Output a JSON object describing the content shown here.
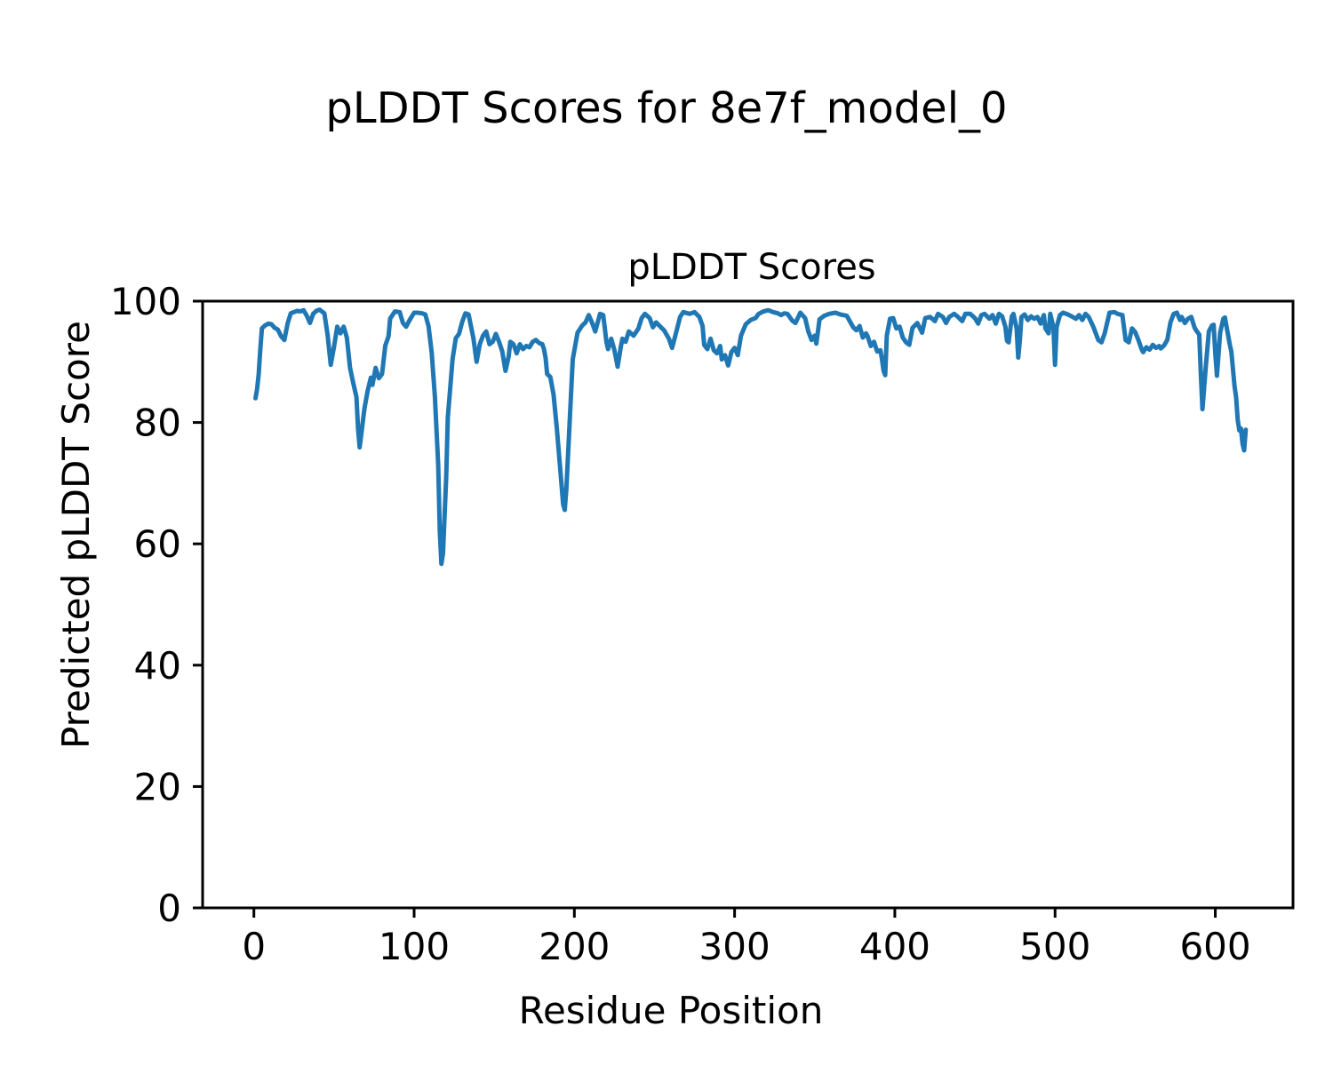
{
  "figure": {
    "suptitle": "pLDDT Scores for 8e7f_model_0",
    "background_color": "#ffffff",
    "text_color": "#000000"
  },
  "chart_data": {
    "type": "line",
    "title": "pLDDT Scores",
    "xlabel": "Residue Position",
    "ylabel": "Predicted pLDDT Score",
    "xlim": [
      -32,
      648.5
    ],
    "ylim": [
      0,
      100
    ],
    "xticks": [
      0,
      100,
      200,
      300,
      400,
      500,
      600
    ],
    "yticks": [
      0,
      20,
      40,
      60,
      80,
      100
    ],
    "grid": false,
    "legend_position": "none",
    "line_color": "#1f77b4",
    "axis_color": "#000000",
    "series": [
      {
        "name": "pLDDT",
        "x": [
          1,
          2,
          3,
          4,
          5,
          7,
          9,
          11,
          13,
          15,
          17,
          19,
          21,
          23,
          25,
          27,
          29,
          31,
          33,
          35,
          37,
          39,
          41,
          44,
          46,
          48,
          50,
          52,
          54,
          56,
          58,
          60,
          62,
          64,
          65,
          66,
          67,
          69,
          71,
          73,
          74,
          76,
          78,
          80,
          82,
          84,
          85,
          88,
          91,
          93,
          95,
          97,
          100,
          102,
          105,
          107,
          109,
          111,
          113,
          115,
          116,
          117,
          118,
          120,
          121,
          124,
          126,
          128,
          130,
          132,
          134,
          137,
          139,
          141,
          143,
          145,
          147,
          149,
          151,
          153,
          155,
          157,
          159,
          160,
          162,
          164,
          166,
          168,
          170,
          172,
          174,
          176,
          178,
          180,
          181,
          182,
          183,
          185,
          187,
          189,
          191,
          193,
          194,
          195,
          197,
          199,
          202,
          205,
          207,
          209,
          211,
          213,
          216,
          218,
          220,
          221,
          223,
          225,
          227,
          229,
          230,
          232,
          234,
          237,
          240,
          242,
          244,
          247,
          249,
          251,
          254,
          256,
          259,
          261,
          263,
          266,
          268,
          272,
          275,
          278,
          280,
          281,
          283,
          285,
          287,
          289,
          291,
          292,
          294,
          296,
          298,
          300,
          302,
          304,
          307,
          310,
          313,
          315,
          318,
          321,
          324,
          327,
          329,
          331,
          333,
          336,
          338,
          341,
          344,
          346,
          347,
          348,
          350,
          351,
          353,
          356,
          359,
          363,
          366,
          370,
          374,
          376,
          378,
          380,
          382,
          383,
          385,
          387,
          389,
          391,
          392,
          393,
          394,
          395,
          397,
          399,
          401,
          403,
          405,
          407,
          409,
          411,
          414,
          417,
          419,
          422,
          425,
          427,
          430,
          432,
          434,
          437,
          439,
          442,
          444,
          447,
          450,
          452,
          454,
          456,
          459,
          461,
          463,
          465,
          467,
          469,
          470,
          471,
          473,
          474,
          476,
          477,
          478,
          479,
          481,
          483,
          485,
          487,
          489,
          491,
          493,
          494,
          496,
          497,
          499,
          500,
          501,
          503,
          505,
          508,
          511,
          513,
          515,
          517,
          519,
          521,
          524,
          527,
          529,
          531,
          534,
          537,
          539,
          542,
          544,
          546,
          548,
          550,
          552,
          554,
          555,
          557,
          559,
          561,
          563,
          565,
          566,
          568,
          570,
          572,
          574,
          576,
          578,
          579,
          581,
          583,
          585,
          587,
          588,
          590,
          591,
          592,
          594,
          596,
          598,
          599,
          600,
          601,
          603,
          605,
          606,
          607,
          609,
          610,
          612,
          613,
          614,
          615,
          616,
          617,
          618,
          619
        ],
        "y": [
          84.0,
          85.5,
          88.0,
          92.0,
          95.5,
          96.0,
          96.3,
          96.2,
          95.6,
          95.3,
          94.2,
          93.6,
          96.3,
          98.0,
          98.2,
          98.4,
          98.3,
          98.5,
          97.6,
          96.4,
          97.9,
          98.4,
          98.6,
          98.0,
          94.5,
          89.5,
          92.5,
          95.8,
          94.7,
          95.8,
          94.0,
          89.0,
          86.5,
          84.2,
          79.0,
          75.9,
          78.0,
          82.3,
          85.2,
          87.4,
          86.2,
          89.0,
          87.3,
          88.0,
          92.7,
          94.2,
          97.1,
          98.3,
          98.2,
          96.4,
          95.8,
          96.8,
          98.1,
          98.1,
          98.0,
          97.8,
          95.9,
          91.5,
          84.2,
          73.0,
          62.0,
          56.7,
          58.4,
          71.0,
          80.8,
          90.5,
          93.9,
          94.6,
          96.6,
          98.0,
          97.8,
          93.9,
          90.0,
          92.9,
          94.3,
          95.0,
          92.9,
          93.3,
          94.6,
          93.3,
          91.7,
          88.5,
          90.9,
          93.3,
          92.9,
          91.4,
          92.9,
          92.1,
          92.6,
          92.4,
          93.3,
          93.6,
          93.1,
          92.9,
          92.1,
          90.7,
          88.0,
          87.5,
          84.6,
          79.2,
          72.9,
          66.5,
          65.6,
          69.0,
          79.7,
          90.4,
          94.8,
          96.0,
          96.5,
          97.7,
          96.5,
          95.0,
          97.9,
          97.7,
          93.3,
          92.1,
          93.8,
          91.9,
          89.2,
          92.5,
          93.8,
          93.3,
          95.0,
          94.3,
          95.5,
          97.2,
          97.9,
          97.2,
          95.7,
          96.5,
          95.7,
          95.2,
          93.8,
          92.3,
          94.3,
          97.4,
          98.2,
          97.9,
          98.2,
          97.4,
          95.9,
          92.8,
          92.1,
          93.8,
          91.9,
          91.4,
          92.6,
          90.4,
          91.1,
          89.4,
          91.6,
          92.3,
          91.1,
          94.3,
          96.2,
          96.9,
          97.2,
          97.9,
          98.3,
          98.5,
          98.2,
          98.0,
          97.7,
          98.0,
          97.9,
          96.8,
          96.4,
          98.1,
          97.2,
          95.0,
          94.3,
          93.6,
          94.3,
          93.0,
          97.0,
          97.6,
          97.9,
          98.1,
          97.8,
          97.6,
          95.7,
          95.2,
          95.9,
          94.0,
          94.7,
          94.2,
          92.6,
          93.3,
          91.7,
          91.9,
          90.4,
          88.5,
          87.8,
          94.3,
          97.1,
          97.2,
          95.5,
          95.8,
          94.0,
          93.2,
          92.8,
          95.6,
          96.4,
          94.8,
          97.2,
          97.4,
          96.7,
          97.9,
          97.4,
          96.4,
          97.4,
          97.9,
          97.5,
          96.7,
          97.9,
          97.9,
          97.2,
          96.3,
          97.7,
          97.9,
          97.1,
          97.7,
          96.3,
          97.9,
          97.5,
          95.8,
          93.5,
          93.2,
          97.5,
          97.9,
          95.5,
          90.7,
          93.5,
          97.4,
          97.8,
          96.9,
          97.5,
          97.1,
          97.4,
          96.3,
          97.7,
          95.5,
          94.7,
          97.9,
          95.7,
          89.5,
          95.7,
          97.7,
          98.1,
          97.8,
          97.4,
          97.1,
          97.7,
          96.9,
          97.9,
          97.4,
          95.7,
          93.6,
          93.2,
          94.7,
          98.1,
          98.2,
          97.9,
          97.7,
          93.6,
          93.2,
          95.5,
          94.9,
          93.6,
          92.1,
          91.6,
          92.4,
          92.0,
          92.8,
          92.3,
          92.6,
          92.2,
          92.7,
          93.6,
          96.5,
          97.9,
          98.1,
          96.9,
          97.4,
          96.4,
          97.1,
          97.4,
          95.7,
          95.2,
          94.5,
          87.9,
          82.2,
          88.9,
          95.0,
          96.0,
          96.1,
          91.3,
          87.7,
          94.8,
          97.1,
          97.3,
          95.8,
          92.9,
          91.7,
          86.0,
          84.1,
          80.4,
          78.7,
          79.0,
          76.5,
          75.4,
          78.8
        ]
      }
    ]
  }
}
